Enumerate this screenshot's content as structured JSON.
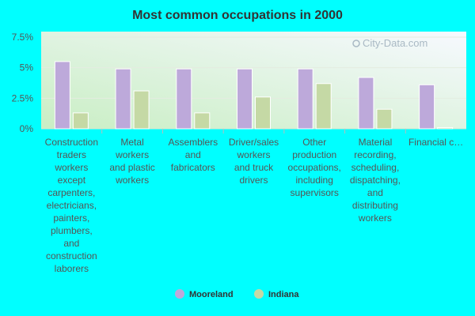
{
  "watermark": "City-Data.com",
  "chart_data": {
    "type": "bar",
    "title": "Most common occupations in 2000",
    "ylim": [
      0,
      7.5
    ],
    "yticks": [
      "0%",
      "2.5%",
      "5%",
      "7.5%"
    ],
    "ytick_values": [
      0,
      2.5,
      5,
      7.5
    ],
    "categories": [
      [
        "Construction",
        "traders",
        "workers",
        "except",
        "carpenters,",
        "electricians,",
        "painters,",
        "plumbers,",
        "and",
        "construction",
        "laborers"
      ],
      [
        "Metal",
        "workers",
        "and plastic",
        "workers"
      ],
      [
        "Assemblers",
        "and",
        "fabricators"
      ],
      [
        "Driver/sales",
        "workers",
        "and truck",
        "drivers"
      ],
      [
        "Other",
        "production",
        "occupations,",
        "including",
        "supervisors"
      ],
      [
        "Material",
        "recording,",
        "scheduling,",
        "dispatching,",
        "and",
        "distributing",
        "workers"
      ],
      [
        "Financial c…"
      ]
    ],
    "series": [
      {
        "name": "Mooreland",
        "color": "#bda9da",
        "values": [
          5.5,
          4.9,
          4.9,
          4.9,
          4.9,
          4.2,
          3.6
        ]
      },
      {
        "name": "Indiana",
        "color": "#c5d9a5",
        "values": [
          1.3,
          3.1,
          1.3,
          2.6,
          3.7,
          1.6,
          0.1
        ]
      }
    ],
    "legend_position": "bottom",
    "grid": true
  }
}
